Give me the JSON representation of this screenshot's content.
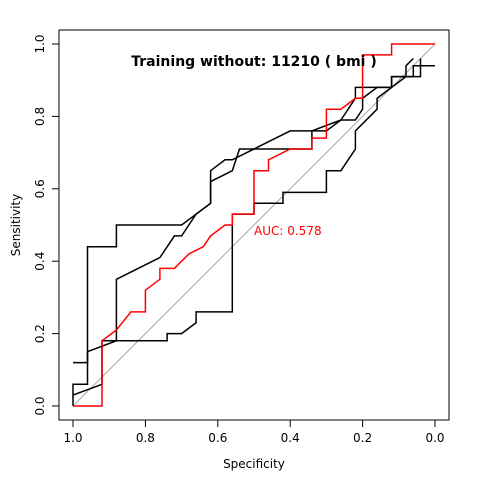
{
  "chart_data": {
    "type": "line",
    "title": "Training without: 11210 ( bmi )",
    "xlabel": "Specificity",
    "ylabel": "Sensitivity",
    "xlim": [
      1.0,
      0.0
    ],
    "ylim": [
      0.0,
      1.0
    ],
    "x_reversed": true,
    "xticks": [
      "1.0",
      "0.8",
      "0.6",
      "0.4",
      "0.2",
      "0.0"
    ],
    "yticks": [
      "0.0",
      "0.2",
      "0.4",
      "0.6",
      "0.8",
      "1.0"
    ],
    "grid": false,
    "annotation": "AUC: 0.578",
    "colors": {
      "main": "#ff0000",
      "ci": "#000000",
      "diagonal": "#aaaaaa"
    },
    "series": [
      {
        "color": "#ff0000",
        "x": [
          1.0,
          0.92,
          0.92,
          0.88,
          0.84,
          0.8,
          0.8,
          0.76,
          0.76,
          0.72,
          0.7,
          0.68,
          0.64,
          0.62,
          0.62,
          0.58,
          0.56,
          0.56,
          0.5,
          0.5,
          0.46,
          0.46,
          0.4,
          0.34,
          0.34,
          0.3,
          0.3,
          0.26,
          0.22,
          0.2,
          0.2,
          0.12,
          0.12,
          0.0
        ],
        "y": [
          0.0,
          0.0,
          0.18,
          0.21,
          0.26,
          0.26,
          0.32,
          0.35,
          0.38,
          0.38,
          0.4,
          0.42,
          0.44,
          0.47,
          0.47,
          0.5,
          0.5,
          0.53,
          0.53,
          0.65,
          0.65,
          0.68,
          0.71,
          0.71,
          0.74,
          0.74,
          0.82,
          0.82,
          0.85,
          0.85,
          0.97,
          0.97,
          1.0,
          1.0
        ]
      },
      {
        "color": "#000000",
        "x": [
          1.0,
          0.96,
          0.96,
          0.88,
          0.88,
          0.7,
          0.62,
          0.62,
          0.58,
          0.56,
          0.52,
          0.52,
          0.46,
          0.46,
          0.4,
          0.34,
          0.3,
          0.26,
          0.26,
          0.22,
          0.2,
          0.2,
          0.16,
          0.12,
          0.12,
          0.06,
          0.06,
          0.0
        ],
        "y": [
          0.12,
          0.12,
          0.44,
          0.44,
          0.5,
          0.5,
          0.56,
          0.65,
          0.68,
          0.68,
          0.7,
          0.7,
          0.73,
          0.73,
          0.76,
          0.76,
          0.76,
          0.79,
          0.79,
          0.79,
          0.82,
          0.85,
          0.88,
          0.88,
          0.91,
          0.91,
          0.94,
          0.94
        ]
      },
      {
        "color": "#000000",
        "x": [
          1.0,
          1.0,
          0.96,
          0.96,
          0.88,
          0.74,
          0.74,
          0.7,
          0.66,
          0.66,
          0.56,
          0.56,
          0.5,
          0.5,
          0.42,
          0.42,
          0.3,
          0.3,
          0.26,
          0.22,
          0.22,
          0.16,
          0.16,
          0.08,
          0.08,
          0.06
        ],
        "y": [
          0.0,
          0.06,
          0.06,
          0.15,
          0.18,
          0.18,
          0.2,
          0.2,
          0.23,
          0.26,
          0.26,
          0.53,
          0.53,
          0.56,
          0.56,
          0.59,
          0.59,
          0.65,
          0.65,
          0.71,
          0.76,
          0.82,
          0.85,
          0.91,
          0.94,
          0.96
        ]
      },
      {
        "color": "#000000",
        "x": [
          1.0,
          0.92,
          0.92,
          0.88,
          0.88,
          0.76,
          0.72,
          0.7,
          0.66,
          0.62,
          0.62,
          0.56,
          0.54,
          0.44,
          0.38,
          0.34,
          0.34,
          0.26,
          0.22,
          0.22,
          0.12,
          0.12,
          0.04,
          0.04
        ],
        "y": [
          0.03,
          0.06,
          0.18,
          0.18,
          0.35,
          0.41,
          0.47,
          0.47,
          0.53,
          0.56,
          0.62,
          0.65,
          0.71,
          0.71,
          0.71,
          0.71,
          0.76,
          0.79,
          0.85,
          0.88,
          0.88,
          0.91,
          0.91,
          0.96
        ]
      }
    ]
  }
}
